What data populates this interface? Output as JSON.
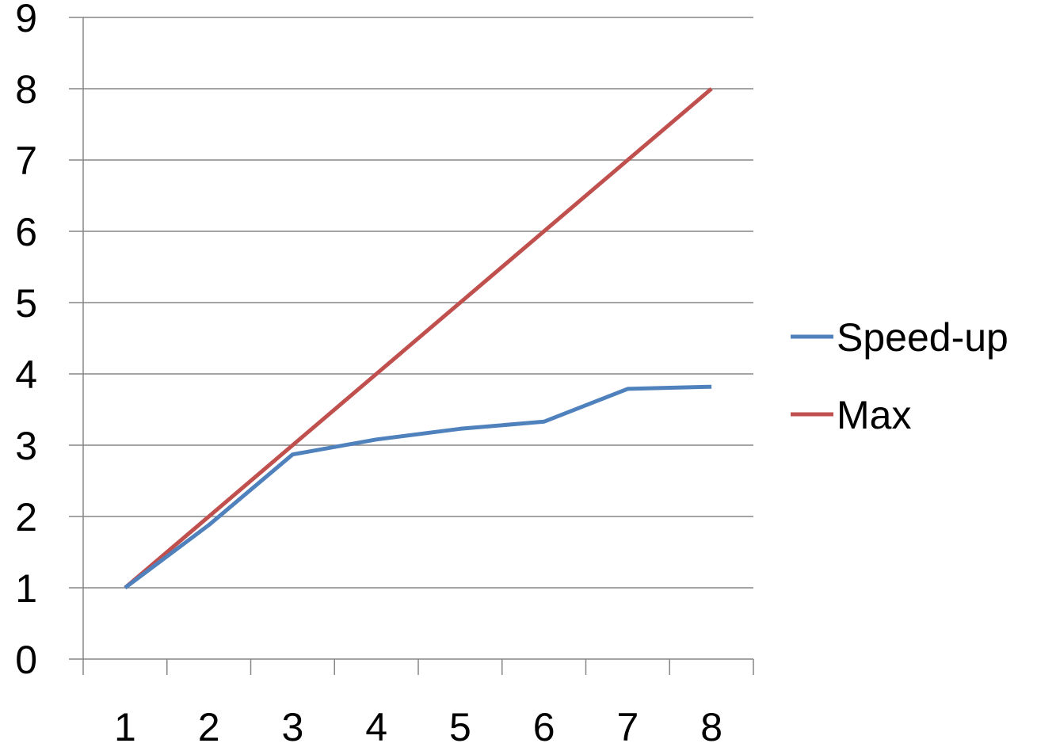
{
  "chart_data": {
    "type": "line",
    "title": "",
    "xlabel": "",
    "ylabel": "",
    "categories": [
      "1",
      "2",
      "3",
      "4",
      "5",
      "6",
      "7",
      "8"
    ],
    "y_ticks": [
      "0",
      "1",
      "2",
      "3",
      "4",
      "5",
      "6",
      "7",
      "8",
      "9"
    ],
    "ylim": [
      0,
      9
    ],
    "grid": "horizontal",
    "legend_position": "right",
    "series": [
      {
        "name": "Speed-up",
        "color": "#4f81bd",
        "values": [
          1.0,
          1.88,
          2.87,
          3.08,
          3.23,
          3.33,
          3.79,
          3.82
        ]
      },
      {
        "name": "Max",
        "color": "#c0504d",
        "values": [
          1,
          2,
          3,
          4,
          5,
          6,
          7,
          8
        ]
      }
    ]
  }
}
